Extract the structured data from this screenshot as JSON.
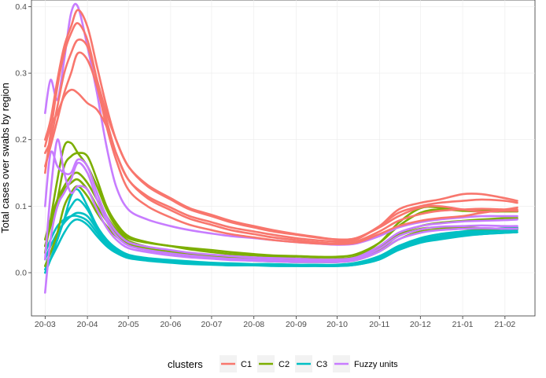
{
  "chart_data": {
    "type": "line",
    "title": "",
    "xlabel": "",
    "ylabel": "Total cases over swabs by region",
    "x_ticks": [
      "20-03",
      "20-04",
      "20-05",
      "20-06",
      "20-07",
      "20-08",
      "20-09",
      "20-10",
      "20-11",
      "20-12",
      "21-01",
      "21-02"
    ],
    "y_ticks": [
      "0.0",
      "0.1",
      "0.2",
      "0.3",
      "0.4"
    ],
    "xlim": [
      "2020-02-20",
      "2021-02-23"
    ],
    "ylim": [
      -0.065,
      0.41
    ],
    "grid": true,
    "legend_position": "bottom",
    "legend": {
      "title": "clusters",
      "entries": [
        {
          "key": "C1",
          "label": "C1",
          "color": "#F8766D"
        },
        {
          "key": "C2",
          "label": "C2",
          "color": "#7CAE00"
        },
        {
          "key": "C3",
          "label": "C3",
          "color": "#00BFC4"
        },
        {
          "key": "Fuzzy",
          "label": "Fuzzy units",
          "color": "#C77CFF"
        }
      ]
    },
    "x": [
      "2020-03-01",
      "2020-03-05",
      "2020-03-10",
      "2020-03-15",
      "2020-03-20",
      "2020-03-25",
      "2020-04-01",
      "2020-04-08",
      "2020-04-15",
      "2020-04-22",
      "2020-05-01",
      "2020-05-15",
      "2020-06-01",
      "2020-06-15",
      "2020-07-01",
      "2020-07-15",
      "2020-08-01",
      "2020-08-15",
      "2020-09-01",
      "2020-09-15",
      "2020-10-01",
      "2020-10-15",
      "2020-11-01",
      "2020-11-15",
      "2020-12-01",
      "2020-12-15",
      "2021-01-01",
      "2021-01-15",
      "2021-02-01",
      "2021-02-10"
    ],
    "series": [
      {
        "cluster": "C1",
        "values": [
          0.2,
          0.23,
          0.29,
          0.34,
          0.37,
          0.395,
          0.37,
          0.31,
          0.25,
          0.2,
          0.16,
          0.13,
          0.11,
          0.095,
          0.085,
          0.076,
          0.068,
          0.062,
          0.057,
          0.053,
          0.05,
          0.052,
          0.07,
          0.095,
          0.105,
          0.11,
          0.118,
          0.118,
          0.112,
          0.108
        ]
      },
      {
        "cluster": "C1",
        "values": [
          0.15,
          0.21,
          0.28,
          0.33,
          0.36,
          0.375,
          0.35,
          0.29,
          0.23,
          0.18,
          0.14,
          0.115,
          0.098,
          0.085,
          0.076,
          0.068,
          0.062,
          0.057,
          0.052,
          0.049,
          0.047,
          0.05,
          0.07,
          0.09,
          0.1,
          0.105,
          0.108,
          0.11,
          0.108,
          0.105
        ]
      },
      {
        "cluster": "C1",
        "values": [
          0.18,
          0.2,
          0.25,
          0.3,
          0.33,
          0.35,
          0.34,
          0.29,
          0.24,
          0.2,
          0.16,
          0.132,
          0.112,
          0.097,
          0.087,
          0.078,
          0.07,
          0.064,
          0.058,
          0.054,
          0.05,
          0.052,
          0.068,
          0.085,
          0.098,
          0.1,
          0.095,
          0.092,
          0.093,
          0.093
        ]
      },
      {
        "cluster": "C1",
        "values": [
          0.19,
          0.22,
          0.24,
          0.265,
          0.275,
          0.27,
          0.255,
          0.245,
          0.22,
          0.18,
          0.14,
          0.112,
          0.094,
          0.081,
          0.072,
          0.064,
          0.058,
          0.053,
          0.049,
          0.046,
          0.044,
          0.047,
          0.062,
          0.078,
          0.088,
          0.093,
          0.095,
          0.096,
          0.095,
          0.095
        ]
      },
      {
        "cluster": "C1",
        "values": [
          0.16,
          0.19,
          0.23,
          0.27,
          0.3,
          0.33,
          0.32,
          0.28,
          0.22,
          0.17,
          0.125,
          0.1,
          0.083,
          0.072,
          0.064,
          0.058,
          0.053,
          0.049,
          0.046,
          0.044,
          0.043,
          0.045,
          0.058,
          0.07,
          0.078,
          0.082,
          0.085,
          0.09,
          0.095,
          0.098
        ]
      },
      {
        "cluster": "C2",
        "values": [
          0.03,
          0.08,
          0.14,
          0.19,
          0.195,
          0.18,
          0.16,
          0.13,
          0.095,
          0.07,
          0.052,
          0.045,
          0.04,
          0.037,
          0.034,
          0.031,
          0.028,
          0.026,
          0.025,
          0.024,
          0.024,
          0.028,
          0.045,
          0.07,
          0.09,
          0.095,
          0.093,
          0.092,
          0.092,
          0.092
        ]
      },
      {
        "cluster": "C2",
        "values": [
          0.04,
          0.07,
          0.11,
          0.16,
          0.175,
          0.18,
          0.175,
          0.14,
          0.1,
          0.075,
          0.055,
          0.046,
          0.04,
          0.035,
          0.031,
          0.028,
          0.026,
          0.024,
          0.022,
          0.021,
          0.021,
          0.025,
          0.045,
          0.075,
          0.097,
          0.098,
          0.094,
          0.093,
          0.093,
          0.093
        ]
      },
      {
        "cluster": "C2",
        "values": [
          0.05,
          0.08,
          0.11,
          0.13,
          0.145,
          0.15,
          0.135,
          0.11,
          0.085,
          0.065,
          0.048,
          0.039,
          0.033,
          0.029,
          0.026,
          0.023,
          0.021,
          0.02,
          0.019,
          0.019,
          0.019,
          0.022,
          0.038,
          0.058,
          0.07,
          0.075,
          0.078,
          0.08,
          0.082,
          0.082
        ]
      },
      {
        "cluster": "C2",
        "values": [
          0.04,
          0.07,
          0.1,
          0.125,
          0.135,
          0.14,
          0.125,
          0.1,
          0.078,
          0.06,
          0.045,
          0.037,
          0.032,
          0.028,
          0.025,
          0.022,
          0.02,
          0.019,
          0.018,
          0.018,
          0.018,
          0.021,
          0.035,
          0.055,
          0.066,
          0.068,
          0.068,
          0.067,
          0.066,
          0.066
        ]
      },
      {
        "cluster": "C2",
        "values": [
          0.01,
          0.03,
          0.06,
          0.1,
          0.12,
          0.13,
          0.115,
          0.09,
          0.07,
          0.055,
          0.042,
          0.034,
          0.029,
          0.025,
          0.022,
          0.02,
          0.018,
          0.017,
          0.016,
          0.016,
          0.016,
          0.019,
          0.032,
          0.05,
          0.062,
          0.065,
          0.066,
          0.066,
          0.066,
          0.066
        ]
      },
      {
        "cluster": "C3",
        "values": [
          0.0,
          0.02,
          0.05,
          0.08,
          0.115,
          0.125,
          0.1,
          0.07,
          0.05,
          0.037,
          0.027,
          0.022,
          0.019,
          0.017,
          0.015,
          0.014,
          0.013,
          0.013,
          0.012,
          0.012,
          0.012,
          0.015,
          0.025,
          0.04,
          0.052,
          0.058,
          0.062,
          0.065,
          0.067,
          0.068
        ]
      },
      {
        "cluster": "C3",
        "values": [
          0.01,
          0.03,
          0.05,
          0.08,
          0.1,
          0.11,
          0.095,
          0.068,
          0.048,
          0.035,
          0.026,
          0.021,
          0.018,
          0.016,
          0.014,
          0.013,
          0.012,
          0.012,
          0.011,
          0.011,
          0.011,
          0.014,
          0.024,
          0.04,
          0.05,
          0.055,
          0.06,
          0.063,
          0.066,
          0.067
        ]
      },
      {
        "cluster": "C3",
        "values": [
          0.02,
          0.04,
          0.06,
          0.075,
          0.085,
          0.09,
          0.085,
          0.065,
          0.045,
          0.033,
          0.025,
          0.02,
          0.017,
          0.015,
          0.013,
          0.012,
          0.012,
          0.011,
          0.011,
          0.011,
          0.011,
          0.013,
          0.022,
          0.038,
          0.048,
          0.053,
          0.058,
          0.061,
          0.063,
          0.064
        ]
      },
      {
        "cluster": "C3",
        "values": [
          0.03,
          0.05,
          0.07,
          0.08,
          0.085,
          0.085,
          0.078,
          0.06,
          0.042,
          0.031,
          0.023,
          0.019,
          0.016,
          0.014,
          0.013,
          0.012,
          0.011,
          0.011,
          0.01,
          0.01,
          0.01,
          0.012,
          0.02,
          0.035,
          0.046,
          0.051,
          0.056,
          0.058,
          0.06,
          0.061
        ]
      },
      {
        "cluster": "C3",
        "values": [
          0.005,
          0.02,
          0.04,
          0.06,
          0.075,
          0.08,
          0.072,
          0.055,
          0.04,
          0.03,
          0.022,
          0.018,
          0.015,
          0.013,
          0.012,
          0.011,
          0.011,
          0.01,
          0.01,
          0.01,
          0.01,
          0.012,
          0.02,
          0.034,
          0.045,
          0.05,
          0.055,
          0.058,
          0.06,
          0.061
        ]
      },
      {
        "cluster": "Fuzzy",
        "values": [
          0.24,
          0.29,
          0.26,
          0.32,
          0.39,
          0.4,
          0.34,
          0.27,
          0.19,
          0.13,
          0.095,
          0.08,
          0.07,
          0.064,
          0.059,
          0.055,
          0.052,
          0.049,
          0.046,
          0.044,
          0.042,
          0.044,
          0.055,
          0.068,
          0.076,
          0.08,
          0.083,
          0.085,
          0.085,
          0.085
        ]
      },
      {
        "cluster": "Fuzzy",
        "values": [
          0.1,
          0.18,
          0.16,
          0.15,
          0.15,
          0.17,
          0.16,
          0.12,
          0.085,
          0.062,
          0.046,
          0.039,
          0.034,
          0.03,
          0.027,
          0.025,
          0.023,
          0.022,
          0.021,
          0.02,
          0.02,
          0.023,
          0.04,
          0.06,
          0.07,
          0.074,
          0.077,
          0.078,
          0.079,
          0.08
        ]
      },
      {
        "cluster": "Fuzzy",
        "values": [
          -0.03,
          0.05,
          0.1,
          0.12,
          0.14,
          0.165,
          0.15,
          0.11,
          0.078,
          0.056,
          0.041,
          0.034,
          0.029,
          0.026,
          0.023,
          0.021,
          0.02,
          0.019,
          0.018,
          0.018,
          0.018,
          0.021,
          0.036,
          0.055,
          0.065,
          0.069,
          0.07,
          0.071,
          0.07,
          0.07
        ]
      },
      {
        "cluster": "Fuzzy",
        "values": [
          0.02,
          0.12,
          0.2,
          0.15,
          0.12,
          0.13,
          0.125,
          0.095,
          0.068,
          0.05,
          0.037,
          0.031,
          0.026,
          0.023,
          0.021,
          0.019,
          0.018,
          0.017,
          0.016,
          0.016,
          0.016,
          0.019,
          0.032,
          0.05,
          0.06,
          0.064,
          0.066,
          0.067,
          0.066,
          0.066
        ]
      }
    ]
  }
}
